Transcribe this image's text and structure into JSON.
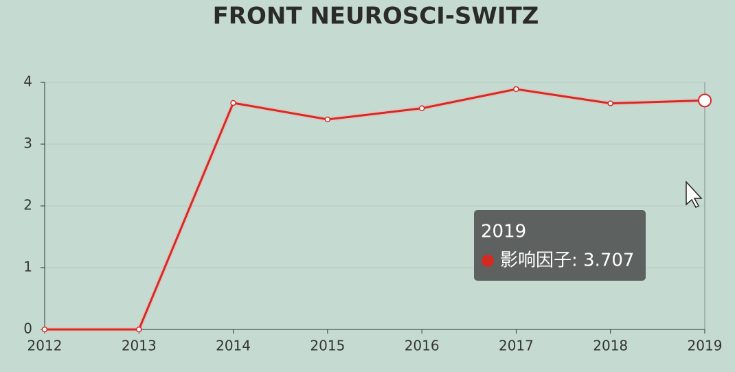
{
  "chart_data": {
    "type": "line",
    "title": "FRONT NEUROSCI-SWITZ",
    "categories": [
      "2012",
      "2013",
      "2014",
      "2015",
      "2016",
      "2017",
      "2018",
      "2019"
    ],
    "series": [
      {
        "name": "影响因子",
        "color": "#d42a24",
        "values": [
          0,
          0,
          3.667,
          3.4,
          3.58,
          3.89,
          3.66,
          3.707
        ]
      }
    ],
    "ylim": [
      0,
      4
    ],
    "yticks": [
      0,
      1,
      2,
      3,
      4
    ],
    "grid": true,
    "tooltip": {
      "label": "影响因子: 3.707"
    }
  }
}
